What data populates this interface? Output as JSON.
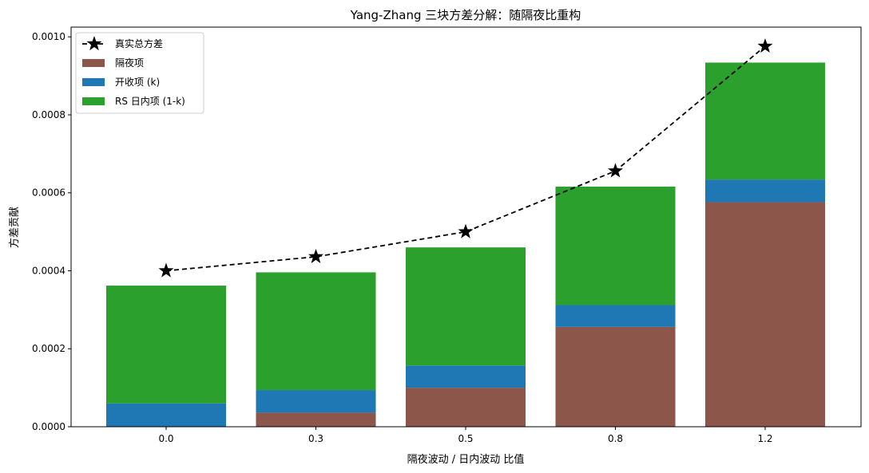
{
  "chart_data": {
    "type": "bar",
    "title": "Yang-Zhang 三块方差分解：随隔夜比重构",
    "xlabel": "隔夜波动 / 日内波动 比值",
    "ylabel": "方差贡献",
    "categories": [
      "0.0",
      "0.3",
      "0.5",
      "0.8",
      "1.2"
    ],
    "stacked": true,
    "series": [
      {
        "name": "隔夜项",
        "values": [
          0.0,
          3.6e-05,
          0.0001,
          0.000256,
          0.000576
        ],
        "color": "#8c564b"
      },
      {
        "name": "开收项 (k)",
        "values": [
          6e-05,
          5.8e-05,
          5.7e-05,
          5.6e-05,
          5.8e-05
        ],
        "color": "#1f77b4"
      },
      {
        "name": "RS 日内项 (1-k)",
        "values": [
          0.000302,
          0.000302,
          0.000303,
          0.000304,
          0.0003
        ],
        "color": "#2ca02c"
      }
    ],
    "line_series": {
      "name": "真实总方差",
      "values": [
        0.0004,
        0.000436,
        0.0005,
        0.000656,
        0.000976
      ],
      "color": "#000000",
      "style": "dashed",
      "marker": "star"
    },
    "yticks": [
      "0.0000",
      "0.0002",
      "0.0004",
      "0.0006",
      "0.0008",
      "0.0010"
    ],
    "ytick_values": [
      0,
      0.0002,
      0.0004,
      0.0006,
      0.0008,
      0.001
    ],
    "ylim": [
      0,
      0.001025
    ],
    "legend_position": "top-left",
    "grid": false
  }
}
